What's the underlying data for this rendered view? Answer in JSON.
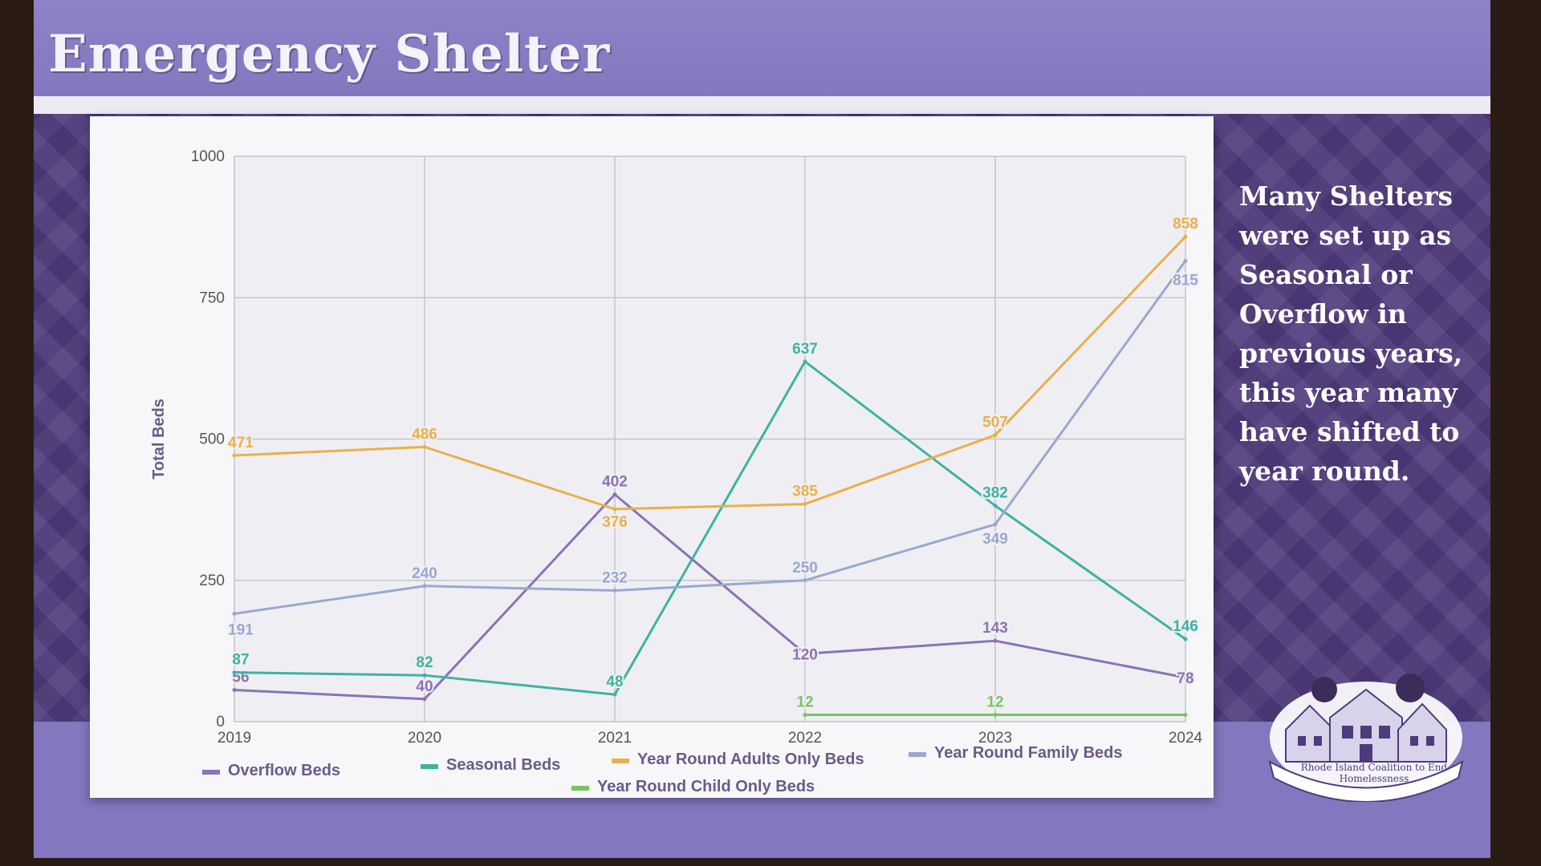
{
  "slide": {
    "title": "Emergency Shelter",
    "side_note": "Many Shelters were set up as Seasonal or Overflow in previous years, this year many have shifted to year round.",
    "logo_text": "Rhode Island Coalition to End Homelessness"
  },
  "colors": {
    "overflow": "#8d72b4",
    "seasonal": "#3fb2a3",
    "adults": "#e8b04b",
    "family": "#9aa8cf",
    "child": "#7cc267"
  },
  "chart_data": {
    "type": "line",
    "title": "",
    "xlabel": "",
    "ylabel": "Total Beds",
    "ylim": [
      0,
      1000
    ],
    "yticks": [
      0,
      250,
      500,
      750,
      1000
    ],
    "grid": true,
    "legend_position": "bottom",
    "x": [
      "2019",
      "2020",
      "2021",
      "2022",
      "2023",
      "2024"
    ],
    "series": [
      {
        "name": "Overflow Beds",
        "color": "#8d72b4",
        "values": [
          56,
          40,
          402,
          120,
          143,
          78
        ],
        "labels": [
          "56",
          "40",
          "402",
          "120",
          "143",
          "78"
        ]
      },
      {
        "name": "Seasonal Beds",
        "color": "#3fb2a3",
        "values": [
          87,
          82,
          48,
          637,
          382,
          146
        ],
        "labels": [
          "87",
          "82",
          "48",
          "637",
          "382",
          "146"
        ]
      },
      {
        "name": "Year Round Adults Only Beds",
        "color": "#e8b04b",
        "values": [
          471,
          486,
          376,
          385,
          507,
          858
        ],
        "labels": [
          "471",
          "486",
          "376",
          "385",
          "507",
          "858"
        ]
      },
      {
        "name": "Year Round Family Beds",
        "color": "#9aa8cf",
        "values": [
          191,
          240,
          232,
          250,
          349,
          815
        ],
        "labels": [
          "191",
          "240",
          "232",
          "250",
          "349",
          "815"
        ]
      },
      {
        "name": "Year Round Child Only Beds",
        "color": "#7cc267",
        "values": [
          null,
          null,
          null,
          12,
          12,
          12
        ],
        "labels": [
          "",
          "",
          "",
          "12",
          "12",
          ""
        ]
      }
    ]
  }
}
